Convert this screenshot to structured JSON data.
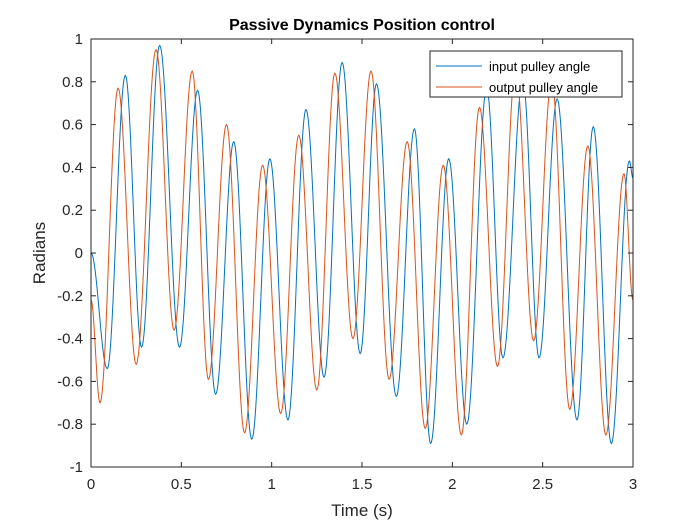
{
  "chart_data": {
    "type": "line",
    "title": "Passive Dynamics Position control",
    "xlabel": "Time (s)",
    "ylabel": "Radians",
    "xlim": [
      0,
      3
    ],
    "ylim": [
      -1,
      1
    ],
    "xticks": [
      0,
      0.5,
      1,
      1.5,
      2,
      2.5,
      3
    ],
    "xtick_labels": [
      "0",
      "0.5",
      "1",
      "1.5",
      "2",
      "2.5",
      "3"
    ],
    "yticks": [
      -1,
      -0.8,
      -0.6,
      -0.4,
      -0.2,
      0,
      0.2,
      0.4,
      0.6,
      0.8,
      1
    ],
    "ytick_labels": [
      "-1",
      "-0.8",
      "-0.6",
      "-0.4",
      "-0.2",
      "0",
      "0.2",
      "0.4",
      "0.6",
      "0.8",
      "1"
    ],
    "grid": false,
    "legend_position": "top-right",
    "series": [
      {
        "name": "input pulley angle",
        "color": "#0072BD",
        "extrema": [
          [
            0.0,
            0.0
          ],
          [
            0.09,
            -0.54
          ],
          [
            0.19,
            0.83
          ],
          [
            0.28,
            -0.44
          ],
          [
            0.38,
            0.97
          ],
          [
            0.49,
            -0.44
          ],
          [
            0.59,
            0.76
          ],
          [
            0.69,
            -0.66
          ],
          [
            0.79,
            0.52
          ],
          [
            0.89,
            -0.87
          ],
          [
            0.99,
            0.44
          ],
          [
            1.09,
            -0.78
          ],
          [
            1.19,
            0.67
          ],
          [
            1.29,
            -0.58
          ],
          [
            1.39,
            0.89
          ],
          [
            1.49,
            -0.47
          ],
          [
            1.58,
            0.79
          ],
          [
            1.69,
            -0.67
          ],
          [
            1.79,
            0.58
          ],
          [
            1.88,
            -0.89
          ],
          [
            1.98,
            0.44
          ],
          [
            2.08,
            -0.8
          ],
          [
            2.19,
            0.77
          ],
          [
            2.28,
            -0.49
          ],
          [
            2.39,
            0.81
          ],
          [
            2.48,
            -0.49
          ],
          [
            2.58,
            0.72
          ],
          [
            2.69,
            -0.78
          ],
          [
            2.78,
            0.59
          ],
          [
            2.88,
            -0.89
          ],
          [
            2.98,
            0.43
          ],
          [
            3.0,
            0.35
          ]
        ]
      },
      {
        "name": "output pulley angle",
        "color": "#D95319",
        "extrema": [
          [
            0.0,
            -0.22
          ],
          [
            0.05,
            -0.7
          ],
          [
            0.15,
            0.77
          ],
          [
            0.25,
            -0.52
          ],
          [
            0.36,
            0.95
          ],
          [
            0.46,
            -0.36
          ],
          [
            0.56,
            0.85
          ],
          [
            0.65,
            -0.59
          ],
          [
            0.75,
            0.6
          ],
          [
            0.85,
            -0.84
          ],
          [
            0.95,
            0.41
          ],
          [
            1.05,
            -0.75
          ],
          [
            1.15,
            0.55
          ],
          [
            1.25,
            -0.64
          ],
          [
            1.35,
            0.84
          ],
          [
            1.45,
            -0.4
          ],
          [
            1.55,
            0.85
          ],
          [
            1.65,
            -0.59
          ],
          [
            1.75,
            0.52
          ],
          [
            1.85,
            -0.82
          ],
          [
            1.95,
            0.41
          ],
          [
            2.05,
            -0.85
          ],
          [
            2.15,
            0.68
          ],
          [
            2.25,
            -0.53
          ],
          [
            2.35,
            0.86
          ],
          [
            2.45,
            -0.41
          ],
          [
            2.55,
            0.81
          ],
          [
            2.65,
            -0.73
          ],
          [
            2.75,
            0.5
          ],
          [
            2.85,
            -0.85
          ],
          [
            2.95,
            0.37
          ],
          [
            3.0,
            -0.22
          ]
        ]
      }
    ]
  }
}
